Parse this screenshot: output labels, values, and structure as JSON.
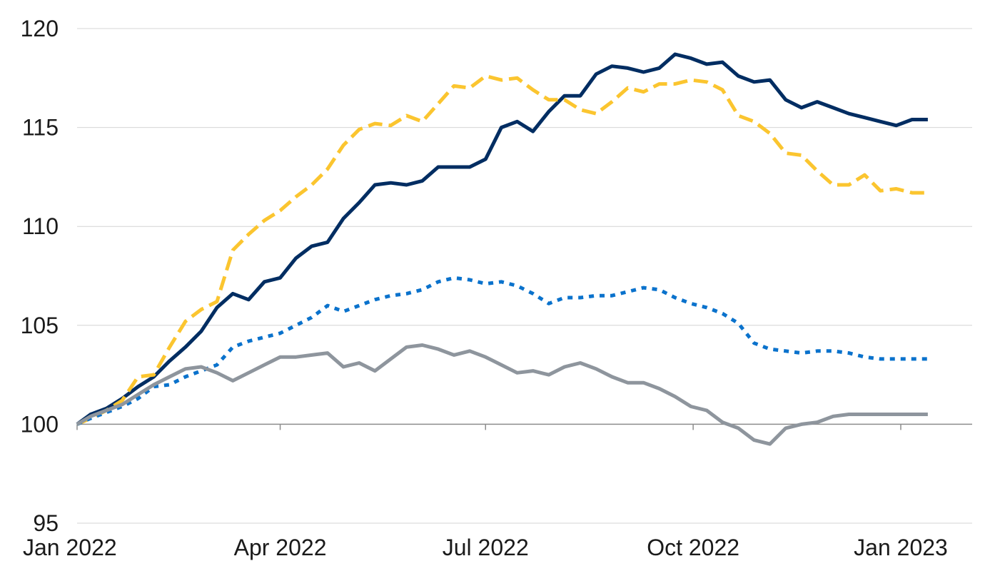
{
  "chart_data": {
    "type": "line",
    "title": "",
    "xlabel": "",
    "ylabel": "",
    "ylim": [
      95,
      120
    ],
    "yticks": [
      95,
      100,
      105,
      110,
      115,
      120
    ],
    "xlim": [
      "2022-01-01",
      "2023-01-31"
    ],
    "xticks": [
      {
        "date": "2022-01-01",
        "label": "Jan 2022"
      },
      {
        "date": "2022-04-01",
        "label": "Apr 2022"
      },
      {
        "date": "2022-07-01",
        "label": "Jul 2022"
      },
      {
        "date": "2022-10-01",
        "label": "Oct 2022"
      },
      {
        "date": "2023-01-01",
        "label": "Jan 2023"
      }
    ],
    "grid": true,
    "baseline": 100,
    "x": [
      "2022-01-01",
      "2022-01-07",
      "2022-01-14",
      "2022-01-21",
      "2022-01-28",
      "2022-02-04",
      "2022-02-11",
      "2022-02-18",
      "2022-02-25",
      "2022-03-04",
      "2022-03-11",
      "2022-03-18",
      "2022-03-25",
      "2022-04-01",
      "2022-04-08",
      "2022-04-15",
      "2022-04-22",
      "2022-04-29",
      "2022-05-06",
      "2022-05-13",
      "2022-05-20",
      "2022-05-27",
      "2022-06-03",
      "2022-06-10",
      "2022-06-17",
      "2022-06-24",
      "2022-07-01",
      "2022-07-08",
      "2022-07-15",
      "2022-07-22",
      "2022-07-29",
      "2022-08-05",
      "2022-08-12",
      "2022-08-19",
      "2022-08-26",
      "2022-09-02",
      "2022-09-09",
      "2022-09-16",
      "2022-09-23",
      "2022-09-30",
      "2022-10-07",
      "2022-10-14",
      "2022-10-21",
      "2022-10-28",
      "2022-11-04",
      "2022-11-11",
      "2022-11-18",
      "2022-11-25",
      "2022-12-02",
      "2022-12-09",
      "2022-12-16",
      "2022-12-23",
      "2022-12-30",
      "2023-01-06",
      "2023-01-13"
    ],
    "series": [
      {
        "color": "#002d62",
        "style": "solid",
        "values": [
          100.0,
          100.5,
          100.8,
          101.3,
          101.9,
          102.4,
          103.2,
          103.9,
          104.7,
          105.9,
          106.6,
          106.3,
          107.2,
          107.4,
          108.4,
          109.0,
          109.2,
          110.4,
          111.2,
          112.1,
          112.2,
          112.1,
          112.3,
          113.0,
          113.0,
          113.0,
          113.4,
          115.0,
          115.3,
          114.8,
          115.8,
          116.6,
          116.6,
          117.7,
          118.1,
          118.0,
          117.8,
          118.0,
          118.7,
          118.5,
          118.2,
          118.3,
          117.6,
          117.3,
          117.4,
          116.4,
          116.0,
          116.3,
          116.0,
          115.7,
          115.5,
          115.3,
          115.1,
          115.4,
          115.4
        ]
      },
      {
        "color": "#fbc52f",
        "style": "dashed",
        "values": [
          100.0,
          100.3,
          100.7,
          101.2,
          102.4,
          102.5,
          103.9,
          105.2,
          105.8,
          106.2,
          108.8,
          109.6,
          110.3,
          110.8,
          111.5,
          112.1,
          112.9,
          114.1,
          114.9,
          115.2,
          115.1,
          115.6,
          115.3,
          116.2,
          117.1,
          117.0,
          117.6,
          117.4,
          117.5,
          116.9,
          116.4,
          116.4,
          115.9,
          115.7,
          116.3,
          117.0,
          116.8,
          117.2,
          117.2,
          117.4,
          117.3,
          116.9,
          115.6,
          115.3,
          114.7,
          113.7,
          113.6,
          112.8,
          112.1,
          112.1,
          112.6,
          111.8,
          111.9,
          111.7,
          111.7
        ]
      },
      {
        "color": "#0a72cc",
        "style": "dotted",
        "values": [
          100.0,
          100.3,
          100.6,
          100.9,
          101.3,
          101.9,
          102.0,
          102.4,
          102.7,
          103.0,
          103.9,
          104.2,
          104.4,
          104.6,
          105.0,
          105.4,
          106.0,
          105.7,
          106.0,
          106.3,
          106.5,
          106.6,
          106.8,
          107.2,
          107.4,
          107.3,
          107.1,
          107.2,
          107.0,
          106.6,
          106.1,
          106.4,
          106.4,
          106.5,
          106.5,
          106.7,
          106.9,
          106.8,
          106.4,
          106.1,
          105.9,
          105.6,
          105.1,
          104.1,
          103.8,
          103.7,
          103.6,
          103.7,
          103.7,
          103.6,
          103.4,
          103.3,
          103.3,
          103.3,
          103.3
        ]
      },
      {
        "color": "#8e959d",
        "style": "solid",
        "values": [
          100.0,
          100.4,
          100.7,
          101.0,
          101.5,
          102.0,
          102.4,
          102.8,
          102.9,
          102.6,
          102.2,
          102.6,
          103.0,
          103.4,
          103.4,
          103.5,
          103.6,
          102.9,
          103.1,
          102.7,
          103.3,
          103.9,
          104.0,
          103.8,
          103.5,
          103.7,
          103.4,
          103.0,
          102.6,
          102.7,
          102.5,
          102.9,
          103.1,
          102.8,
          102.4,
          102.1,
          102.1,
          101.8,
          101.4,
          100.9,
          100.7,
          100.1,
          99.8,
          99.2,
          99.0,
          99.8,
          100.0,
          100.1,
          100.4,
          100.5,
          100.5,
          100.5,
          100.5,
          100.5,
          100.5
        ]
      }
    ]
  }
}
